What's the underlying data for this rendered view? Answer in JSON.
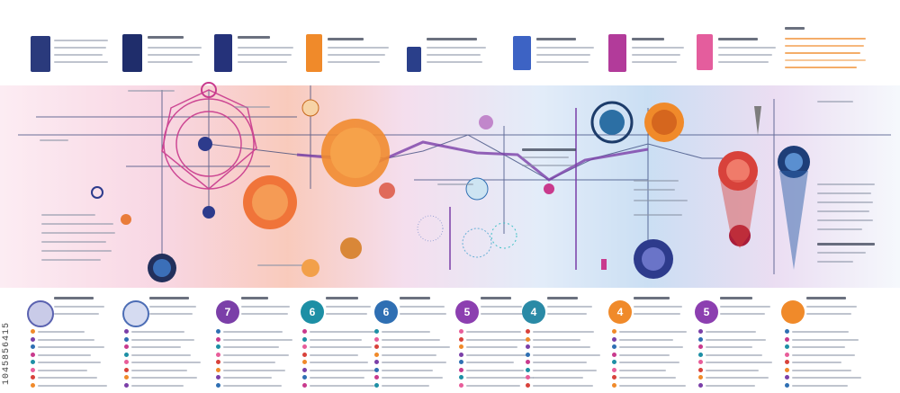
{
  "watermark_id": "1045856415",
  "step_numbers": [
    "7",
    "6",
    "6",
    "5",
    "4",
    "4",
    "5"
  ],
  "colors": {
    "navy": "#27306e",
    "blue": "#2f6fb3",
    "teal": "#1d8fa5",
    "orange": "#f08a2a",
    "magenta": "#c93a8d",
    "purple": "#7b3fa8",
    "pink": "#e85d9a",
    "red": "#d8423b"
  },
  "icons": [
    "gear-icon",
    "cell-icon",
    "dna-icon",
    "flask-icon",
    "funnel-icon"
  ]
}
